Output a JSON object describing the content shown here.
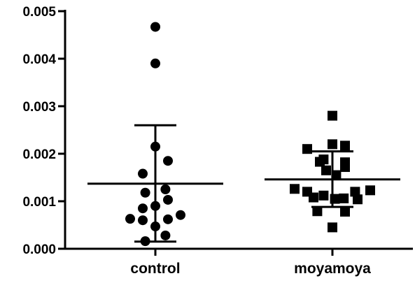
{
  "chart_data": {
    "type": "scatter",
    "title": "",
    "xlabel": "",
    "ylabel": "",
    "ylim": [
      0,
      0.005
    ],
    "yticks": [
      "0.000",
      "0.001",
      "0.002",
      "0.003",
      "0.004",
      "0.005"
    ],
    "categories": [
      "control",
      "moyamoya"
    ],
    "series": [
      {
        "category": "control",
        "marker": "circle",
        "mean": 0.00137,
        "sd_upper": 0.0026,
        "sd_lower": 0.00015,
        "points": [
          {
            "y": 0.00467,
            "offset": 0.0
          },
          {
            "y": 0.0039,
            "offset": 0.0
          },
          {
            "y": 0.00215,
            "offset": 0.0
          },
          {
            "y": 0.00185,
            "offset": 1.0
          },
          {
            "y": 0.00158,
            "offset": -1.0
          },
          {
            "y": 0.00125,
            "offset": 0.8
          },
          {
            "y": 0.00118,
            "offset": -0.8
          },
          {
            "y": 0.00103,
            "offset": 1.0
          },
          {
            "y": 0.0009,
            "offset": 0.0
          },
          {
            "y": 0.00085,
            "offset": -1.0
          },
          {
            "y": 0.00071,
            "offset": 2.0
          },
          {
            "y": 0.00063,
            "offset": -2.0
          },
          {
            "y": 0.00062,
            "offset": 1.0
          },
          {
            "y": 0.0006,
            "offset": -1.0
          },
          {
            "y": 0.00047,
            "offset": 0.0
          },
          {
            "y": 0.00028,
            "offset": 0.8
          },
          {
            "y": 0.00016,
            "offset": -0.8
          }
        ]
      },
      {
        "category": "moyamoya",
        "marker": "square",
        "mean": 0.00146,
        "sd_upper": 0.00205,
        "sd_lower": 0.00088,
        "points": [
          {
            "y": 0.0028,
            "offset": 0.0
          },
          {
            "y": 0.0022,
            "offset": 0.0
          },
          {
            "y": 0.00217,
            "offset": 1.0
          },
          {
            "y": 0.0021,
            "offset": -2.0
          },
          {
            "y": 0.00188,
            "offset": -0.7
          },
          {
            "y": 0.00183,
            "offset": -1.0
          },
          {
            "y": 0.00182,
            "offset": 1.0
          },
          {
            "y": 0.00172,
            "offset": 1.0
          },
          {
            "y": 0.00165,
            "offset": -0.5
          },
          {
            "y": 0.00155,
            "offset": 0.3
          },
          {
            "y": 0.00126,
            "offset": -3.0
          },
          {
            "y": 0.00123,
            "offset": 3.0
          },
          {
            "y": 0.0012,
            "offset": -2.0
          },
          {
            "y": 0.0012,
            "offset": 1.8
          },
          {
            "y": 0.00112,
            "offset": -0.7
          },
          {
            "y": 0.00108,
            "offset": -1.5
          },
          {
            "y": 0.00106,
            "offset": 0.9
          },
          {
            "y": 0.00105,
            "offset": 0.2
          },
          {
            "y": 0.00104,
            "offset": 2.0
          },
          {
            "y": 0.00079,
            "offset": -1.2
          },
          {
            "y": 0.00078,
            "offset": 1.0
          },
          {
            "y": 0.00045,
            "offset": 0.0
          }
        ]
      }
    ],
    "grid": false,
    "legend": "none",
    "colors": {
      "marker": "#000000",
      "axis": "#000000"
    }
  }
}
